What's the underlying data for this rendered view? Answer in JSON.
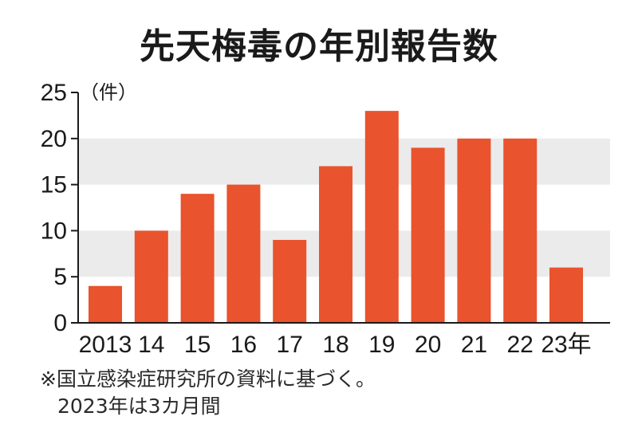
{
  "chart_data": {
    "type": "bar",
    "title": "先天梅毒の年別報告数",
    "unit_label": "（件）",
    "categories": [
      "2013",
      "14",
      "15",
      "16",
      "17",
      "18",
      "19",
      "20",
      "21",
      "22",
      "23年"
    ],
    "values": [
      4,
      10,
      14,
      15,
      9,
      17,
      23,
      19,
      20,
      20,
      6
    ],
    "y_ticks": [
      0,
      5,
      10,
      15,
      20,
      25
    ],
    "ylim": [
      0,
      25
    ],
    "grid": "alternating bands",
    "legend": "none"
  },
  "notes": {
    "line1": "※国立感染症研究所の資料に基づく。",
    "line2": "2023年は3カ月間"
  },
  "colors": {
    "bar": "#e9532d",
    "band": "#ebebeb",
    "text": "#1a1a1a"
  }
}
